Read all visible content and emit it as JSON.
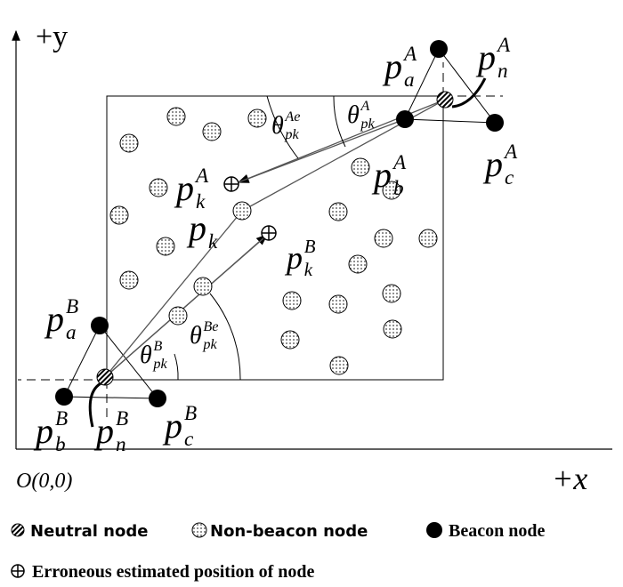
{
  "axes": {
    "y": "+y",
    "x": "+x",
    "origin": "O(0,0)"
  },
  "labels": [
    {
      "base": "p",
      "sub": "a",
      "sup": "A"
    },
    {
      "base": "p",
      "sub": "n",
      "sup": "A"
    },
    {
      "base": "p",
      "sub": "b",
      "sup": "A"
    },
    {
      "base": "p",
      "sub": "c",
      "sup": "A"
    },
    {
      "base": "p",
      "sub": "k",
      "sup": "A"
    },
    {
      "base": "p",
      "sub": "k"
    },
    {
      "base": "p",
      "sub": "k",
      "sup": "B"
    },
    {
      "base": "p",
      "sub": "a",
      "sup": "B"
    },
    {
      "base": "p",
      "sub": "b",
      "sup": "B"
    },
    {
      "base": "p",
      "sub": "n",
      "sup": "B"
    },
    {
      "base": "p",
      "sub": "c",
      "sup": "B"
    },
    {
      "base": "θ",
      "sub": "pk",
      "sup": "Ae"
    },
    {
      "base": "θ",
      "sub": "pk",
      "sup": "A"
    },
    {
      "base": "θ",
      "sub": "pk",
      "sup": "B"
    },
    {
      "base": "θ",
      "sub": "pk",
      "sup": "Be"
    }
  ],
  "legend": [
    "Neutral node",
    "Non-beacon node",
    "Beacon node",
    "Erroneous estimated position of node"
  ]
}
